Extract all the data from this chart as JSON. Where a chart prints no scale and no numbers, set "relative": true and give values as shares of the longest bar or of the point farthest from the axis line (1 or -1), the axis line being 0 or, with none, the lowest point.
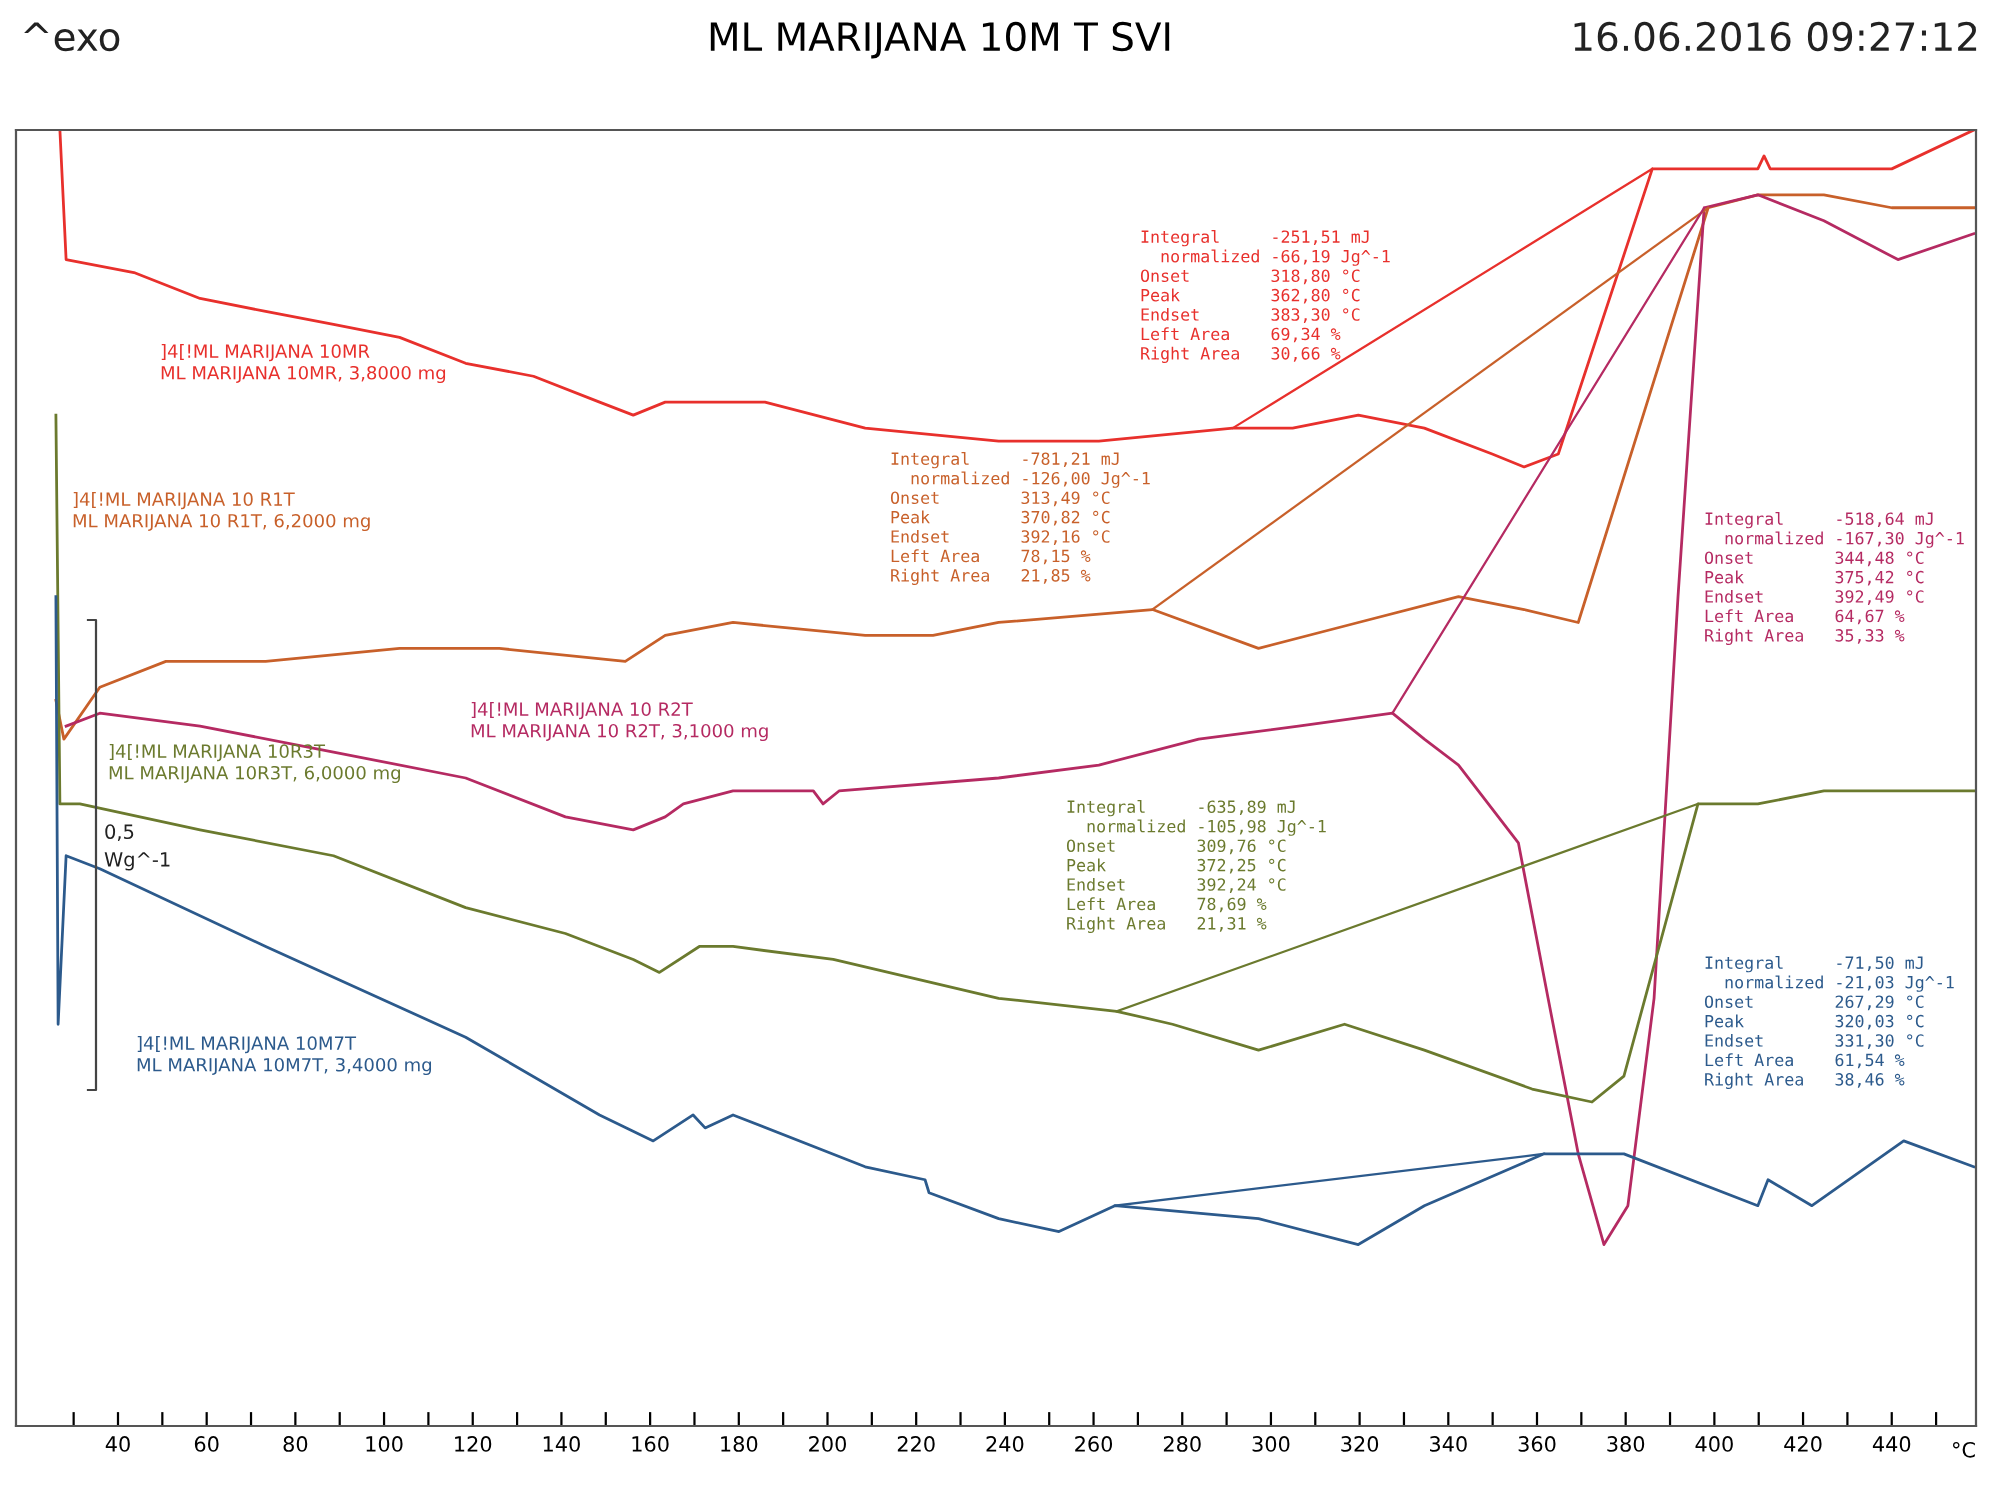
{
  "chart_data": {
    "type": "line",
    "title": "ML MARIJANA 10M T SVI",
    "xlabel": "°C",
    "relative": true,
    "grid": false,
    "legend": false,
    "marker": "none",
    "line_style": "solid",
    "xlim": [
      17,
      459
    ],
    "xticks": [
      {
        "value": 30,
        "label": null
      },
      40,
      {
        "value": 50,
        "label": null
      },
      60,
      {
        "value": 70,
        "label": null
      },
      80,
      {
        "value": 90,
        "label": null
      },
      100,
      {
        "value": 110,
        "label": null
      },
      120,
      {
        "value": 130,
        "label": null
      },
      140,
      {
        "value": 150,
        "label": null
      },
      160,
      {
        "value": 170,
        "label": null
      },
      180,
      {
        "value": 190,
        "label": null
      },
      200,
      {
        "value": 210,
        "label": null
      },
      220,
      {
        "value": 230,
        "label": null
      },
      240,
      {
        "value": 250,
        "label": null
      },
      260,
      {
        "value": 270,
        "label": null
      },
      280,
      {
        "value": 290,
        "label": null
      },
      300,
      {
        "value": 310,
        "label": null
      },
      320,
      {
        "value": 330,
        "label": null
      },
      340,
      {
        "value": 350,
        "label": null
      },
      360,
      {
        "value": 370,
        "label": null
      },
      380,
      {
        "value": 390,
        "label": null
      },
      400,
      {
        "value": 410,
        "label": null
      },
      420,
      {
        "value": 430,
        "label": null
      },
      440,
      {
        "value": 450,
        "label": null
      }
    ],
    "series": [
      {
        "name": "]4[!ML MARIJANA 10MR\nML MARIJANA 10MR, 3,8000 mg",
        "color": "#e8302c",
        "x": [
          26.9,
          28.3,
          43.6,
          58.5,
          73.3,
          88.6,
          103.5,
          118.4,
          133.7,
          148.6,
          156.2,
          163.4,
          171.1,
          185.9,
          208.5,
          238.6,
          261.2,
          291.4,
          304.9,
          319.7,
          334.6,
          349.9,
          357.1,
          364.8,
          386.0,
          395.0,
          409.8,
          411.2,
          412.6,
          440.0,
          458.5
        ],
        "values": [
          1.0,
          0.9,
          0.89,
          0.87,
          0.86,
          0.85,
          0.84,
          0.82,
          0.81,
          0.79,
          0.78,
          0.79,
          0.79,
          0.79,
          0.77,
          0.76,
          0.76,
          0.77,
          0.77,
          0.78,
          0.77,
          0.75,
          0.74,
          0.75,
          0.97,
          0.97,
          0.97,
          0.98,
          0.97,
          0.97,
          1.0
        ]
      },
      {
        "name": "]4[!ML MARIJANA 10 R1T\nML MARIJANA 10 R1T, 6,2000 mg",
        "color": "#c8602a",
        "x": [
          26.0,
          27.8,
          35.9,
          50.8,
          73.3,
          103.5,
          126.0,
          154.4,
          163.4,
          178.7,
          208.5,
          220.6,
          223.8,
          238.6,
          273.3,
          297.2,
          319.7,
          342.3,
          357.1,
          369.3,
          398.6,
          409.8,
          424.7,
          440.0,
          458.5
        ],
        "values": [
          0.56,
          0.53,
          0.57,
          0.59,
          0.59,
          0.6,
          0.6,
          0.59,
          0.61,
          0.62,
          0.61,
          0.61,
          0.61,
          0.62,
          0.63,
          0.6,
          0.62,
          0.64,
          0.63,
          0.62,
          0.94,
          0.95,
          0.95,
          0.94,
          0.94
        ]
      },
      {
        "name": "]4[!ML MARIJANA 10 R2T\nML MARIJANA 10 R2T, 3,1000 mg",
        "color": "#b52a62",
        "x": [
          28.3,
          35.9,
          58.5,
          88.6,
          118.4,
          140.9,
          156.2,
          163.4,
          167.5,
          178.7,
          196.8,
          199.0,
          202.6,
          238.6,
          261.2,
          283.7,
          306.2,
          327.4,
          334.6,
          342.3,
          355.8,
          362.5,
          369.3,
          375.1,
          380.5,
          386.4,
          391.8,
          397.7,
          409.8,
          424.7,
          441.4,
          458.5
        ],
        "values": [
          0.54,
          0.55,
          0.54,
          0.52,
          0.5,
          0.47,
          0.46,
          0.47,
          0.48,
          0.49,
          0.49,
          0.48,
          0.49,
          0.5,
          0.51,
          0.53,
          0.54,
          0.55,
          0.53,
          0.51,
          0.45,
          0.33,
          0.21,
          0.14,
          0.17,
          0.33,
          0.64,
          0.94,
          0.95,
          0.93,
          0.9,
          0.92
        ]
      },
      {
        "name": "]4[!ML MARIJANA 10R3T\nML MARIJANA 10R3T, 6,0000 mg",
        "color": "#6b7a2e",
        "x": [
          26.0,
          26.9,
          28.3,
          31.4,
          58.5,
          88.6,
          118.4,
          140.9,
          156.2,
          162.1,
          171.1,
          178.7,
          201.3,
          238.6,
          265.2,
          277.8,
          297.2,
          316.6,
          334.6,
          358.9,
          372.4,
          379.6,
          396.3,
          409.8,
          424.7,
          447.2,
          458.5
        ],
        "values": [
          0.78,
          0.48,
          0.48,
          0.48,
          0.46,
          0.44,
          0.4,
          0.38,
          0.36,
          0.35,
          0.37,
          0.37,
          0.36,
          0.33,
          0.32,
          0.31,
          0.29,
          0.31,
          0.29,
          0.26,
          0.25,
          0.27,
          0.48,
          0.48,
          0.49,
          0.49,
          0.49
        ]
      },
      {
        "name": "]4[!ML MARIJANA 10M7T\nML MARIJANA 10M7T, 3,4000 mg",
        "color": "#2c5a8c",
        "x": [
          26.0,
          26.5,
          28.3,
          35.9,
          73.3,
          118.4,
          148.6,
          160.7,
          169.7,
          172.4,
          178.7,
          208.5,
          222.0,
          222.9,
          238.6,
          252.2,
          264.8,
          297.2,
          319.7,
          334.6,
          361.6,
          379.6,
          409.8,
          412.1,
          422.0,
          442.7,
          458.5
        ],
        "values": [
          0.64,
          0.31,
          0.44,
          0.43,
          0.37,
          0.3,
          0.24,
          0.22,
          0.24,
          0.23,
          0.24,
          0.2,
          0.19,
          0.18,
          0.16,
          0.15,
          0.17,
          0.16,
          0.14,
          0.17,
          0.21,
          0.21,
          0.17,
          0.19,
          0.17,
          0.22,
          0.2
        ]
      },
      {
        "color": "#e8302c",
        "x": [
          291.4,
          386.0
        ],
        "values": [
          0.77,
          0.97
        ]
      },
      {
        "color": "#c8602a",
        "x": [
          273.3,
          398.6
        ],
        "values": [
          0.63,
          0.94
        ]
      },
      {
        "color": "#b52a62",
        "x": [
          327.4,
          397.7
        ],
        "values": [
          0.55,
          0.94
        ]
      },
      {
        "color": "#6b7a2e",
        "x": [
          265.2,
          396.3
        ],
        "values": [
          0.32,
          0.48
        ]
      },
      {
        "color": "#2c5a8c",
        "x": [
          264.8,
          361.6
        ],
        "values": [
          0.17,
          0.21
        ]
      }
    ],
    "annotations": [
      "^exo",
      "16.06.2016 09:27:12",
      "0,5\nWg^-1",
      "Integral     -251,51 mJ\n  normalized -66,19 Jg^-1\nOnset        318,80 °C\nPeak         362,80 °C\nEndset       383,30 °C\nLeft Area    69,34 %\nRight Area   30,66 %",
      "Integral     -781,21 mJ\n  normalized -126,00 Jg^-1\nOnset        313,49 °C\nPeak         370,82 °C\nEndset       392,16 °C\nLeft Area    78,15 %\nRight Area   21,85 %",
      "Integral     -518,64 mJ\n  normalized -167,30 Jg^-1\nOnset        344,48 °C\nPeak         375,42 °C\nEndset       392,49 °C\nLeft Area    64,67 %\nRight Area   35,33 %",
      "Integral     -635,89 mJ\n  normalized -105,98 Jg^-1\nOnset        309,76 °C\nPeak         372,25 °C\nEndset       392,24 °C\nLeft Area    78,69 %\nRight Area   21,31 %",
      "Integral     -71,50 mJ\n  normalized -21,03 Jg^-1\nOnset        267,29 °C\nPeak         320,03 °C\nEndset       331,30 °C\nLeft Area    61,54 %\nRight Area   38,46 %"
    ]
  }
}
